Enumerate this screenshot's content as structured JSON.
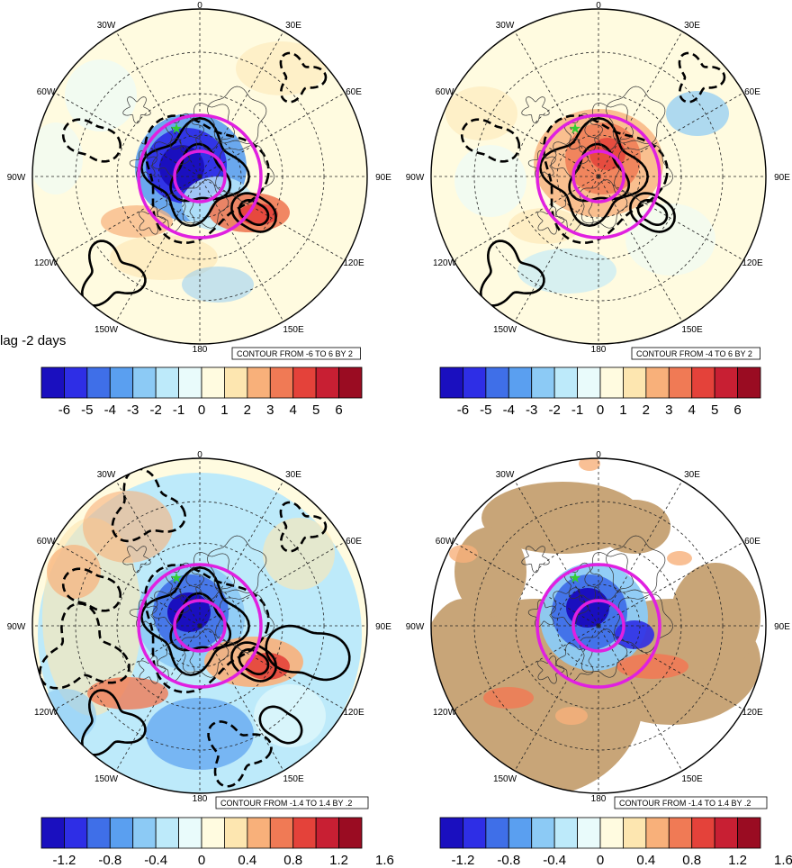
{
  "lag_label": "lag -2 days",
  "panel_ring_color": "#e020e0",
  "marker_color": "#33cc33",
  "panels": [
    {
      "contour_label": "CONTOUR FROM -6 TO 6 BY 2",
      "colorbar_ticks": [
        "-6",
        "-5",
        "-4",
        "-3",
        "-2",
        "-1",
        "0",
        "1",
        "2",
        "3",
        "4",
        "5",
        "6"
      ],
      "land_fill": false
    },
    {
      "contour_label": "CONTOUR FROM -4 TO 6 BY 2",
      "colorbar_ticks": [
        "-6",
        "-5",
        "-4",
        "-3",
        "-2",
        "-1",
        "0",
        "1",
        "2",
        "3",
        "4",
        "5",
        "6"
      ],
      "land_fill": false
    },
    {
      "contour_label": "CONTOUR FROM -1.4 TO 1.4 BY .2",
      "colorbar_ticks": [
        "-1.2",
        "-0.8",
        "-0.4",
        "0",
        "0.4",
        "0.8",
        "1.2",
        "1.6"
      ],
      "land_fill": false
    },
    {
      "contour_label": "CONTOUR FROM -1.4 TO 1.4 BY .2",
      "colorbar_ticks": [
        "-1.2",
        "-0.8",
        "-0.4",
        "0",
        "0.4",
        "0.8",
        "1.2",
        "1.6"
      ],
      "land_fill": true
    }
  ],
  "longitude_labels": [
    "0",
    "30W",
    "60W",
    "90W",
    "120W",
    "150W",
    "180",
    "150E",
    "120E",
    "90E",
    "60E",
    "30E"
  ],
  "colorbar_colors": [
    "#1a0fbf",
    "#2e2ee6",
    "#3f6fe8",
    "#5a9ff0",
    "#8ccaf5",
    "#bdeafa",
    "#e9fbfb",
    "#fffbe0",
    "#fde6b0",
    "#f8b07a",
    "#f07a55",
    "#e4423a",
    "#c81f33",
    "#9a0c22"
  ],
  "chart_data": {
    "type": "heatmap",
    "projection": "north polar stereographic",
    "title": "",
    "legend_placement": "bottom",
    "panels": [
      {
        "shading_range": [
          -6,
          6
        ],
        "contour_min": -6,
        "contour_max": 6,
        "contour_interval": 2
      },
      {
        "shading_range": [
          -6,
          6
        ],
        "contour_min": -4,
        "contour_max": 6,
        "contour_interval": 2
      },
      {
        "shading_range": [
          -1.4,
          1.6
        ],
        "contour_min": -1.4,
        "contour_max": 1.4,
        "contour_interval": 0.2
      },
      {
        "shading_range": [
          -1.4,
          1.6
        ],
        "contour_min": -1.4,
        "contour_max": 1.4,
        "contour_interval": 0.2
      }
    ]
  }
}
